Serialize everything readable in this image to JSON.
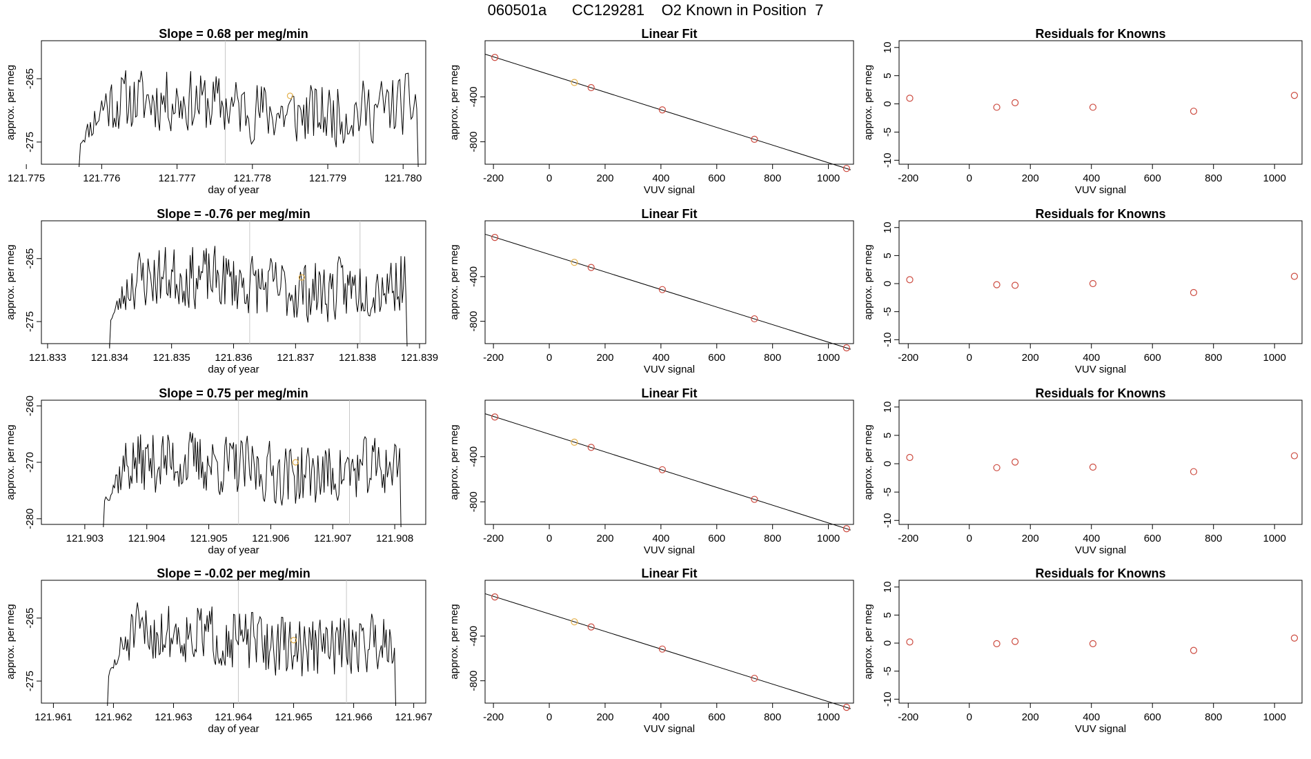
{
  "figure_title": "060501a      CC129281    O2 Known in Position  7",
  "colors": {
    "line": "#000000",
    "frame": "#000000",
    "marker_fit": "#cc4a3f",
    "marker_highlight": "#e3b04b",
    "vline": "#c8c8c8"
  },
  "chart_data": [
    {
      "type": "line",
      "title": "Slope =  0.68  per meg/min",
      "xlabel": "day of year",
      "ylabel": "approx. per meg",
      "xlim": [
        121.7752,
        121.7803
      ],
      "ylim": [
        -278.5,
        -259.0
      ],
      "xticks": [
        "121.775",
        "121.776",
        "121.777",
        "121.778",
        "121.779",
        "121.780"
      ],
      "yticks": [
        "-265",
        "-275"
      ],
      "start": 121.7757,
      "end": 121.7802,
      "base": -269.5,
      "amplitude": 3.4,
      "seed": 11,
      "vlines": [
        121.77764,
        121.77942
      ],
      "highlight_point": [
        121.7785,
        -267.7
      ]
    },
    {
      "type": "scatter",
      "title": "Linear Fit",
      "xlabel": "VUV signal",
      "ylabel": "approx. per meg",
      "xlim": [
        -230,
        1090
      ],
      "ylim": [
        -1000,
        100
      ],
      "xticks": [
        -200,
        0,
        200,
        400,
        600,
        800,
        1000
      ],
      "yticks": [
        -400,
        -800
      ],
      "points": [
        [
          -195,
          -49
        ],
        [
          90,
          -272
        ],
        [
          150,
          -318
        ],
        [
          405,
          -516
        ],
        [
          735,
          -778
        ],
        [
          1065,
          -1038
        ]
      ],
      "fit_line": [
        [
          -230,
          -20
        ],
        [
          1080,
          -1050
        ]
      ],
      "highlight_index": 1
    },
    {
      "type": "scatter",
      "title": "Residuals for Knowns",
      "xlabel": "VUV signal",
      "ylabel": "approx. per meg",
      "xlim": [
        -230,
        1090
      ],
      "ylim": [
        -10.7,
        11.2
      ],
      "xticks": [
        -200,
        0,
        200,
        400,
        600,
        800,
        1000
      ],
      "yticks": [
        10,
        5,
        0,
        -5,
        -10
      ],
      "points": [
        [
          -195,
          1.0
        ],
        [
          90,
          -0.6
        ],
        [
          150,
          0.2
        ],
        [
          405,
          -0.6
        ],
        [
          735,
          -1.3
        ],
        [
          1065,
          1.5
        ]
      ]
    },
    {
      "type": "line",
      "title": "Slope =  -0.76  per meg/min",
      "xlabel": "day of year",
      "ylabel": "approx. per meg",
      "xlim": [
        121.8329,
        121.8391
      ],
      "ylim": [
        -278.5,
        -259.0
      ],
      "xticks": [
        "121.833",
        "121.834",
        "121.835",
        "121.836",
        "121.837",
        "121.838",
        "121.839"
      ],
      "yticks": [
        "-265",
        "-275"
      ],
      "start": 121.834,
      "end": 121.8388,
      "base": -269.0,
      "amplitude": 3.4,
      "seed": 23,
      "vlines": [
        121.83626,
        121.83804
      ],
      "highlight_point": [
        121.8371,
        -268.0
      ]
    },
    {
      "type": "scatter",
      "title": "Linear Fit",
      "xlabel": "VUV signal",
      "ylabel": "approx. per meg",
      "xlim": [
        -230,
        1090
      ],
      "ylim": [
        -1000,
        100
      ],
      "xticks": [
        -200,
        0,
        200,
        400,
        600,
        800,
        1000
      ],
      "yticks": [
        -400,
        -800
      ],
      "points": [
        [
          -195,
          -49
        ],
        [
          90,
          -272
        ],
        [
          150,
          -318
        ],
        [
          405,
          -516
        ],
        [
          735,
          -778
        ],
        [
          1065,
          -1038
        ]
      ],
      "fit_line": [
        [
          -230,
          -20
        ],
        [
          1080,
          -1050
        ]
      ],
      "highlight_index": 1
    },
    {
      "type": "scatter",
      "title": "Residuals for Knowns",
      "xlabel": "VUV signal",
      "ylabel": "approx. per meg",
      "xlim": [
        -230,
        1090
      ],
      "ylim": [
        -10.7,
        11.2
      ],
      "xticks": [
        -200,
        0,
        200,
        400,
        600,
        800,
        1000
      ],
      "yticks": [
        10,
        5,
        0,
        -5,
        -10
      ],
      "points": [
        [
          -195,
          0.7
        ],
        [
          90,
          -0.2
        ],
        [
          150,
          -0.3
        ],
        [
          405,
          0.0
        ],
        [
          735,
          -1.6
        ],
        [
          1065,
          1.3
        ]
      ]
    },
    {
      "type": "line",
      "title": "Slope =  0.75  per meg/min",
      "xlabel": "day of year",
      "ylabel": "approx. per meg",
      "xlim": [
        121.9023,
        121.9085
      ],
      "ylim": [
        -281.0,
        -259.0
      ],
      "xticks": [
        "121.903",
        "121.904",
        "121.905",
        "121.906",
        "121.907",
        "121.908"
      ],
      "yticks": [
        "-260",
        "-270",
        "-280"
      ],
      "start": 121.9033,
      "end": 121.9081,
      "base": -271.0,
      "amplitude": 3.8,
      "seed": 37,
      "vlines": [
        121.90548,
        121.90727
      ],
      "highlight_point": [
        121.9064,
        -270.0
      ]
    },
    {
      "type": "scatter",
      "title": "Linear Fit",
      "xlabel": "VUV signal",
      "ylabel": "approx. per meg",
      "xlim": [
        -230,
        1090
      ],
      "ylim": [
        -1000,
        100
      ],
      "xticks": [
        -200,
        0,
        200,
        400,
        600,
        800,
        1000
      ],
      "yticks": [
        -400,
        -800
      ],
      "points": [
        [
          -195,
          -49
        ],
        [
          90,
          -272
        ],
        [
          150,
          -318
        ],
        [
          405,
          -516
        ],
        [
          735,
          -778
        ],
        [
          1065,
          -1038
        ]
      ],
      "fit_line": [
        [
          -230,
          -20
        ],
        [
          1080,
          -1050
        ]
      ],
      "highlight_index": 1
    },
    {
      "type": "scatter",
      "title": "Residuals for Knowns",
      "xlabel": "VUV signal",
      "ylabel": "approx. per meg",
      "xlim": [
        -230,
        1090
      ],
      "ylim": [
        -10.7,
        11.2
      ],
      "xticks": [
        -200,
        0,
        200,
        400,
        600,
        800,
        1000
      ],
      "yticks": [
        10,
        5,
        0,
        -5,
        -10
      ],
      "points": [
        [
          -195,
          1.1
        ],
        [
          90,
          -0.7
        ],
        [
          150,
          0.3
        ],
        [
          405,
          -0.6
        ],
        [
          735,
          -1.4
        ],
        [
          1065,
          1.4
        ]
      ]
    },
    {
      "type": "line",
      "title": "Slope =  -0.02  per meg/min",
      "xlabel": "day of year",
      "ylabel": "approx. per meg",
      "xlim": [
        121.9608,
        121.9672
      ],
      "ylim": [
        -278.5,
        -259.0
      ],
      "xticks": [
        "121.961",
        "121.962",
        "121.963",
        "121.964",
        "121.965",
        "121.966",
        "121.967"
      ],
      "yticks": [
        "-265",
        "-275"
      ],
      "start": 121.9619,
      "end": 121.9667,
      "base": -268.5,
      "amplitude": 3.3,
      "seed": 51,
      "vlines": [
        121.96408,
        121.96588
      ],
      "highlight_point": [
        121.965,
        -268.5
      ]
    },
    {
      "type": "scatter",
      "title": "Linear Fit",
      "xlabel": "VUV signal",
      "ylabel": "approx. per meg",
      "xlim": [
        -230,
        1090
      ],
      "ylim": [
        -1000,
        100
      ],
      "xticks": [
        -200,
        0,
        200,
        400,
        600,
        800,
        1000
      ],
      "yticks": [
        -400,
        -800
      ],
      "points": [
        [
          -195,
          -49
        ],
        [
          90,
          -272
        ],
        [
          150,
          -318
        ],
        [
          405,
          -516
        ],
        [
          735,
          -778
        ],
        [
          1065,
          -1038
        ]
      ],
      "fit_line": [
        [
          -230,
          -20
        ],
        [
          1080,
          -1050
        ]
      ],
      "highlight_index": 1
    },
    {
      "type": "scatter",
      "title": "Residuals for Knowns",
      "xlabel": "VUV signal",
      "ylabel": "approx. per meg",
      "xlim": [
        -230,
        1090
      ],
      "ylim": [
        -10.7,
        11.2
      ],
      "xticks": [
        -200,
        0,
        200,
        400,
        600,
        800,
        1000
      ],
      "yticks": [
        10,
        5,
        0,
        -5,
        -10
      ],
      "points": [
        [
          -195,
          0.2
        ],
        [
          90,
          -0.1
        ],
        [
          150,
          0.3
        ],
        [
          405,
          -0.1
        ],
        [
          735,
          -1.3
        ],
        [
          1065,
          0.9
        ]
      ]
    }
  ]
}
